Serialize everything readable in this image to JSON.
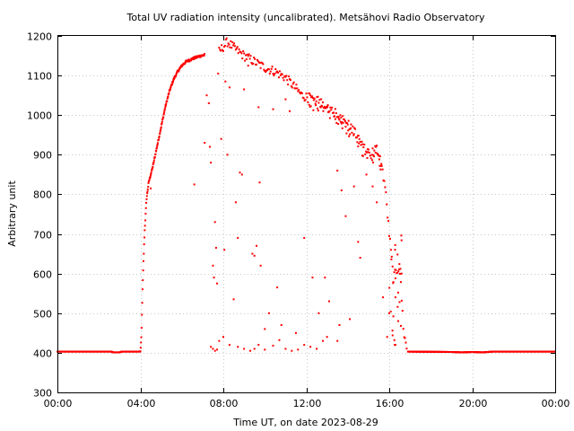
{
  "chart_data": {
    "type": "scatter",
    "title": "Total UV radiation intensity (uncalibrated). Metsähovi Radio Observatory",
    "xlabel": "Time UT, on date 2023-08-29",
    "ylabel": "Arbitrary unit",
    "xlim": [
      0,
      24
    ],
    "ylim": [
      300,
      1200
    ],
    "xticks": [
      {
        "value": 0,
        "label": "00:00"
      },
      {
        "value": 4,
        "label": "04:00"
      },
      {
        "value": 8,
        "label": "08:00"
      },
      {
        "value": 12,
        "label": "12:00"
      },
      {
        "value": 16,
        "label": "16:00"
      },
      {
        "value": 20,
        "label": "20:00"
      },
      {
        "value": 24,
        "label": "00:00"
      }
    ],
    "yticks": [
      300,
      400,
      500,
      600,
      700,
      800,
      900,
      1000,
      1100,
      1200
    ],
    "grid": true,
    "marker_color": "#ff0000",
    "series": [
      {
        "baseline_night": [
          [
            0,
            403
          ],
          [
            2.6,
            403
          ],
          [
            2.7,
            401
          ],
          [
            3.0,
            401
          ],
          [
            3.1,
            403
          ],
          [
            4.0,
            403
          ],
          [
            16.85,
            403
          ],
          [
            19.0,
            402
          ],
          [
            19.5,
            401
          ],
          [
            20.0,
            402
          ],
          [
            20.5,
            401
          ],
          [
            21.0,
            403
          ],
          [
            24.0,
            403
          ]
        ],
        "rise_envelope": [
          [
            4.0,
            403
          ],
          [
            4.05,
            440
          ],
          [
            4.1,
            550
          ],
          [
            4.15,
            630
          ],
          [
            4.2,
            700
          ],
          [
            4.3,
            790
          ],
          [
            4.4,
            830
          ],
          [
            4.6,
            870
          ],
          [
            4.8,
            920
          ],
          [
            5.0,
            970
          ],
          [
            5.2,
            1020
          ],
          [
            5.4,
            1060
          ],
          [
            5.6,
            1090
          ],
          [
            5.8,
            1110
          ],
          [
            6.0,
            1125
          ],
          [
            6.2,
            1135
          ],
          [
            6.5,
            1142
          ],
          [
            6.8,
            1148
          ],
          [
            7.1,
            1152
          ]
        ],
        "upper_envelope": [
          [
            7.8,
            1160
          ],
          [
            8.2,
            1185
          ],
          [
            8.5,
            1170
          ],
          [
            9.0,
            1150
          ],
          [
            9.5,
            1135
          ],
          [
            10.0,
            1120
          ],
          [
            10.5,
            1110
          ],
          [
            11.0,
            1095
          ],
          [
            11.8,
            1050
          ],
          [
            12.3,
            1040
          ],
          [
            12.8,
            1030
          ],
          [
            13.3,
            1010
          ],
          [
            13.8,
            990
          ],
          [
            14.3,
            960
          ],
          [
            14.7,
            920
          ],
          [
            15.1,
            900
          ],
          [
            15.4,
            920
          ],
          [
            15.6,
            880
          ],
          [
            15.8,
            820
          ],
          [
            16.0,
            700
          ],
          [
            16.2,
            590
          ],
          [
            16.5,
            620
          ],
          [
            16.7,
            450
          ],
          [
            16.85,
            410
          ]
        ],
        "scatter": [
          [
            4.5,
            815
          ],
          [
            6.6,
            825
          ],
          [
            7.1,
            930
          ],
          [
            7.2,
            1050
          ],
          [
            7.3,
            1030
          ],
          [
            7.35,
            920
          ],
          [
            7.4,
            880
          ],
          [
            7.5,
            620
          ],
          [
            7.55,
            590
          ],
          [
            7.6,
            730
          ],
          [
            7.65,
            665
          ],
          [
            7.7,
            575
          ],
          [
            7.75,
            1105
          ],
          [
            7.9,
            940
          ],
          [
            8.05,
            660
          ],
          [
            8.1,
            1085
          ],
          [
            8.2,
            900
          ],
          [
            8.3,
            1070
          ],
          [
            8.5,
            535
          ],
          [
            8.6,
            780
          ],
          [
            8.7,
            690
          ],
          [
            8.8,
            855
          ],
          [
            8.9,
            850
          ],
          [
            9.0,
            1065
          ],
          [
            9.2,
            1125
          ],
          [
            9.4,
            650
          ],
          [
            9.5,
            645
          ],
          [
            9.6,
            670
          ],
          [
            9.7,
            1020
          ],
          [
            9.75,
            830
          ],
          [
            9.8,
            620
          ],
          [
            10.0,
            460
          ],
          [
            10.2,
            500
          ],
          [
            10.4,
            1015
          ],
          [
            10.6,
            565
          ],
          [
            10.8,
            470
          ],
          [
            11.0,
            1040
          ],
          [
            11.2,
            1010
          ],
          [
            11.5,
            450
          ],
          [
            11.9,
            690
          ],
          [
            12.3,
            590
          ],
          [
            12.6,
            500
          ],
          [
            12.9,
            590
          ],
          [
            13.1,
            530
          ],
          [
            13.4,
            990
          ],
          [
            13.5,
            860
          ],
          [
            13.6,
            470
          ],
          [
            13.7,
            810
          ],
          [
            13.9,
            745
          ],
          [
            14.1,
            485
          ],
          [
            14.3,
            820
          ],
          [
            14.5,
            680
          ],
          [
            14.6,
            640
          ],
          [
            14.9,
            850
          ],
          [
            15.2,
            820
          ],
          [
            15.4,
            780
          ],
          [
            15.7,
            540
          ],
          [
            15.9,
            440
          ],
          [
            16.0,
            500
          ],
          [
            16.3,
            420
          ],
          [
            7.4,
            415
          ],
          [
            7.5,
            410
          ],
          [
            7.6,
            405
          ],
          [
            7.7,
            408
          ],
          [
            7.8,
            430
          ],
          [
            8.0,
            440
          ],
          [
            8.3,
            420
          ],
          [
            8.7,
            415
          ],
          [
            9.0,
            410
          ],
          [
            9.3,
            405
          ],
          [
            9.5,
            410
          ],
          [
            9.7,
            420
          ],
          [
            10.0,
            408
          ],
          [
            10.4,
            418
          ],
          [
            10.7,
            432
          ],
          [
            11.0,
            410
          ],
          [
            11.3,
            405
          ],
          [
            11.6,
            408
          ],
          [
            11.9,
            420
          ],
          [
            12.2,
            415
          ],
          [
            12.5,
            410
          ],
          [
            12.8,
            430
          ],
          [
            13.0,
            440
          ],
          [
            13.5,
            430
          ]
        ]
      }
    ]
  }
}
